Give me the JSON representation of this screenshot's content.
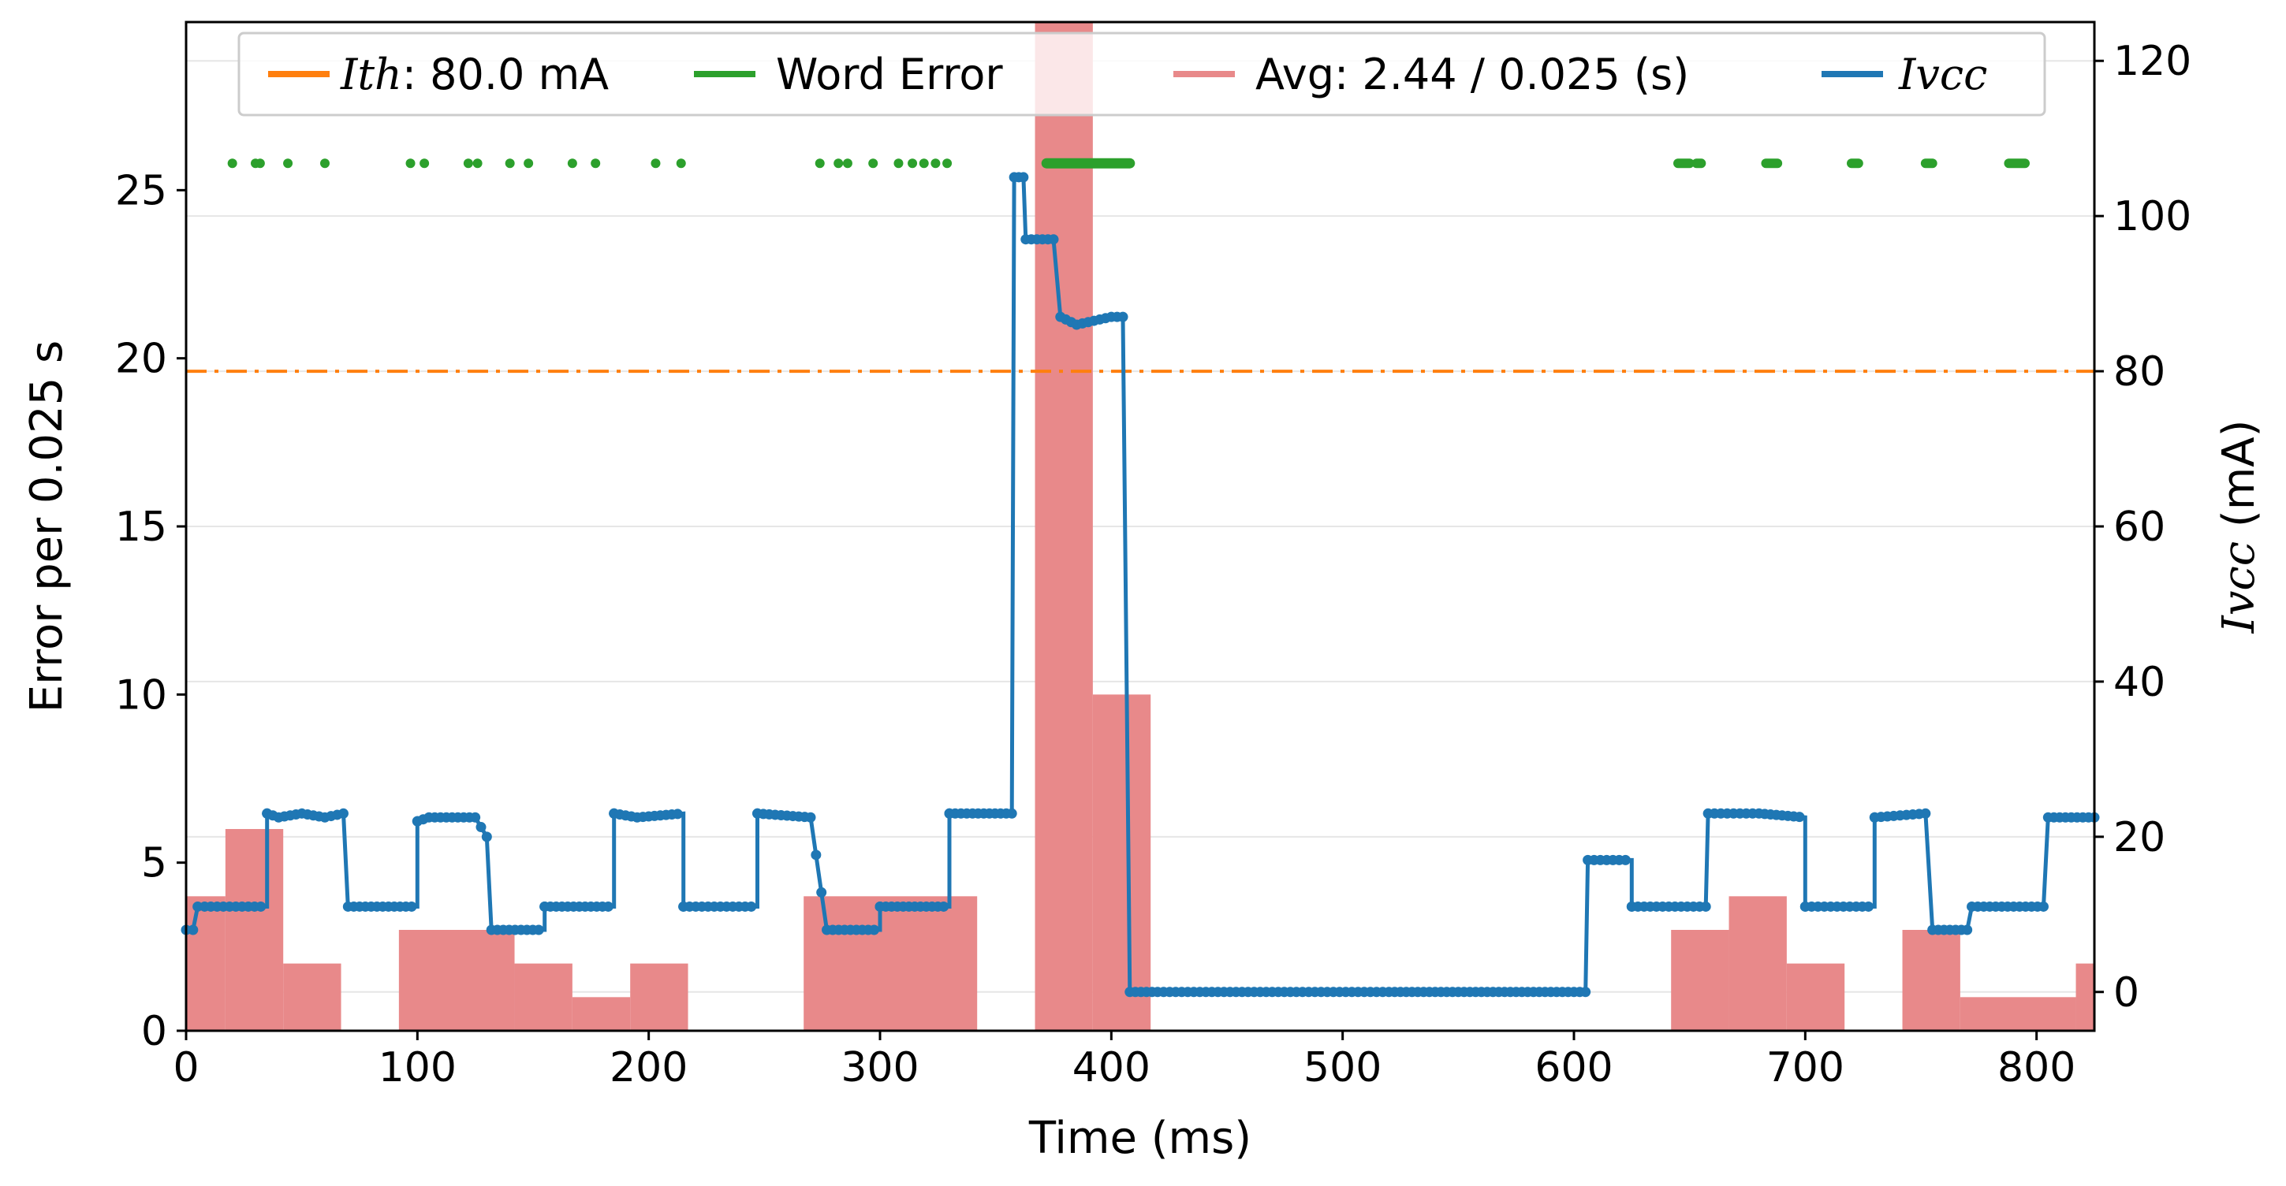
{
  "chart_data": {
    "type": "bar",
    "xlabel": "Time (ms)",
    "ylabel_left": "Error per 0.025 s",
    "ylabel_right_symbol": "Ivcc",
    "ylabel_right_unit": " (mA)",
    "xlim": [
      0,
      825
    ],
    "ylim_left": [
      0,
      30
    ],
    "ylim_right": [
      -5,
      125
    ],
    "xticks": [
      0,
      100,
      200,
      300,
      400,
      500,
      600,
      700,
      800
    ],
    "yticks_left": [
      0,
      5,
      10,
      15,
      20,
      25
    ],
    "yticks_right": [
      0,
      20,
      40,
      60,
      80,
      100,
      120
    ],
    "grid": "horizontal",
    "legend_position": "top",
    "colors": {
      "threshold": "#ff7f0e",
      "word_error": "#2ca02c",
      "avg": "#e8898a",
      "ivcc": "#1f77b4"
    },
    "legend": [
      {
        "symbol": "Ith",
        "text": ": 80.0 mA"
      },
      {
        "symbol": "",
        "text": "Word Error"
      },
      {
        "symbol": "",
        "text": "Avg: 2.44 / 0.025 (s)"
      },
      {
        "symbol": "Ivcc",
        "text": ""
      }
    ],
    "threshold_mA": 80.0,
    "avg_bars": [
      {
        "x0": 0,
        "x1": 17,
        "value": 4
      },
      {
        "x0": 17,
        "x1": 42,
        "value": 6
      },
      {
        "x0": 42,
        "x1": 67,
        "value": 2
      },
      {
        "x0": 92,
        "x1": 142,
        "value": 3
      },
      {
        "x0": 142,
        "x1": 167,
        "value": 2
      },
      {
        "x0": 167,
        "x1": 192,
        "value": 1
      },
      {
        "x0": 192,
        "x1": 217,
        "value": 2
      },
      {
        "x0": 267,
        "x1": 342,
        "value": 4
      },
      {
        "x0": 367,
        "x1": 392,
        "value": 30
      },
      {
        "x0": 392,
        "x1": 417,
        "value": 10
      },
      {
        "x0": 642,
        "x1": 667,
        "value": 3
      },
      {
        "x0": 667,
        "x1": 692,
        "value": 4
      },
      {
        "x0": 692,
        "x1": 717,
        "value": 2
      },
      {
        "x0": 742,
        "x1": 767,
        "value": 3
      },
      {
        "x0": 767,
        "x1": 817,
        "value": 1
      },
      {
        "x0": 817,
        "x1": 825,
        "value": 2
      }
    ],
    "word_error_level": 25.8,
    "word_error_times": [
      20,
      30,
      32,
      44,
      60,
      97,
      103,
      122,
      126,
      140,
      148,
      167,
      177,
      203,
      214,
      274,
      282,
      286,
      297,
      308,
      314,
      319,
      324,
      329
    ],
    "word_error_segments": [
      [
        645,
        650
      ],
      [
        655,
        653
      ],
      [
        683,
        688
      ],
      [
        720,
        723
      ],
      [
        752,
        755
      ],
      [
        788,
        795
      ]
    ],
    "word_error_burst": [
      372,
      408
    ],
    "ivcc_series": [
      [
        0,
        8
      ],
      [
        3,
        8
      ],
      [
        5,
        11
      ],
      [
        8,
        11
      ],
      [
        35,
        11
      ],
      [
        35,
        23
      ],
      [
        40,
        22.5
      ],
      [
        50,
        23
      ],
      [
        60,
        22.5
      ],
      [
        68,
        23
      ],
      [
        70,
        11
      ],
      [
        100,
        11
      ],
      [
        100,
        22
      ],
      [
        105,
        22.5
      ],
      [
        125,
        22.5
      ],
      [
        130,
        20
      ],
      [
        132,
        8
      ],
      [
        155,
        8
      ],
      [
        155,
        11
      ],
      [
        185,
        11
      ],
      [
        185,
        23
      ],
      [
        195,
        22.5
      ],
      [
        215,
        23
      ],
      [
        215,
        11
      ],
      [
        247,
        11
      ],
      [
        247,
        23
      ],
      [
        270,
        22.5
      ],
      [
        277,
        8
      ],
      [
        300,
        8
      ],
      [
        300,
        11
      ],
      [
        330,
        11
      ],
      [
        330,
        23
      ],
      [
        340,
        23
      ],
      [
        357,
        23
      ],
      [
        358,
        105
      ],
      [
        362,
        105
      ],
      [
        363,
        97
      ],
      [
        375,
        97
      ],
      [
        378,
        87
      ],
      [
        385,
        86
      ],
      [
        400,
        87
      ],
      [
        405,
        87
      ],
      [
        408,
        0
      ],
      [
        420,
        0
      ],
      [
        480,
        0
      ],
      [
        520,
        0
      ],
      [
        550,
        0
      ],
      [
        580,
        0
      ],
      [
        605,
        0
      ],
      [
        606,
        17
      ],
      [
        625,
        17
      ],
      [
        625,
        11
      ],
      [
        657,
        11
      ],
      [
        658,
        23
      ],
      [
        680,
        23
      ],
      [
        700,
        22.5
      ],
      [
        700,
        11
      ],
      [
        722,
        11
      ],
      [
        730,
        11
      ],
      [
        730,
        22.5
      ],
      [
        752,
        23
      ],
      [
        755,
        8
      ],
      [
        770,
        8
      ],
      [
        772,
        11
      ],
      [
        803,
        11
      ],
      [
        805,
        22.5
      ],
      [
        825,
        22.5
      ]
    ]
  }
}
